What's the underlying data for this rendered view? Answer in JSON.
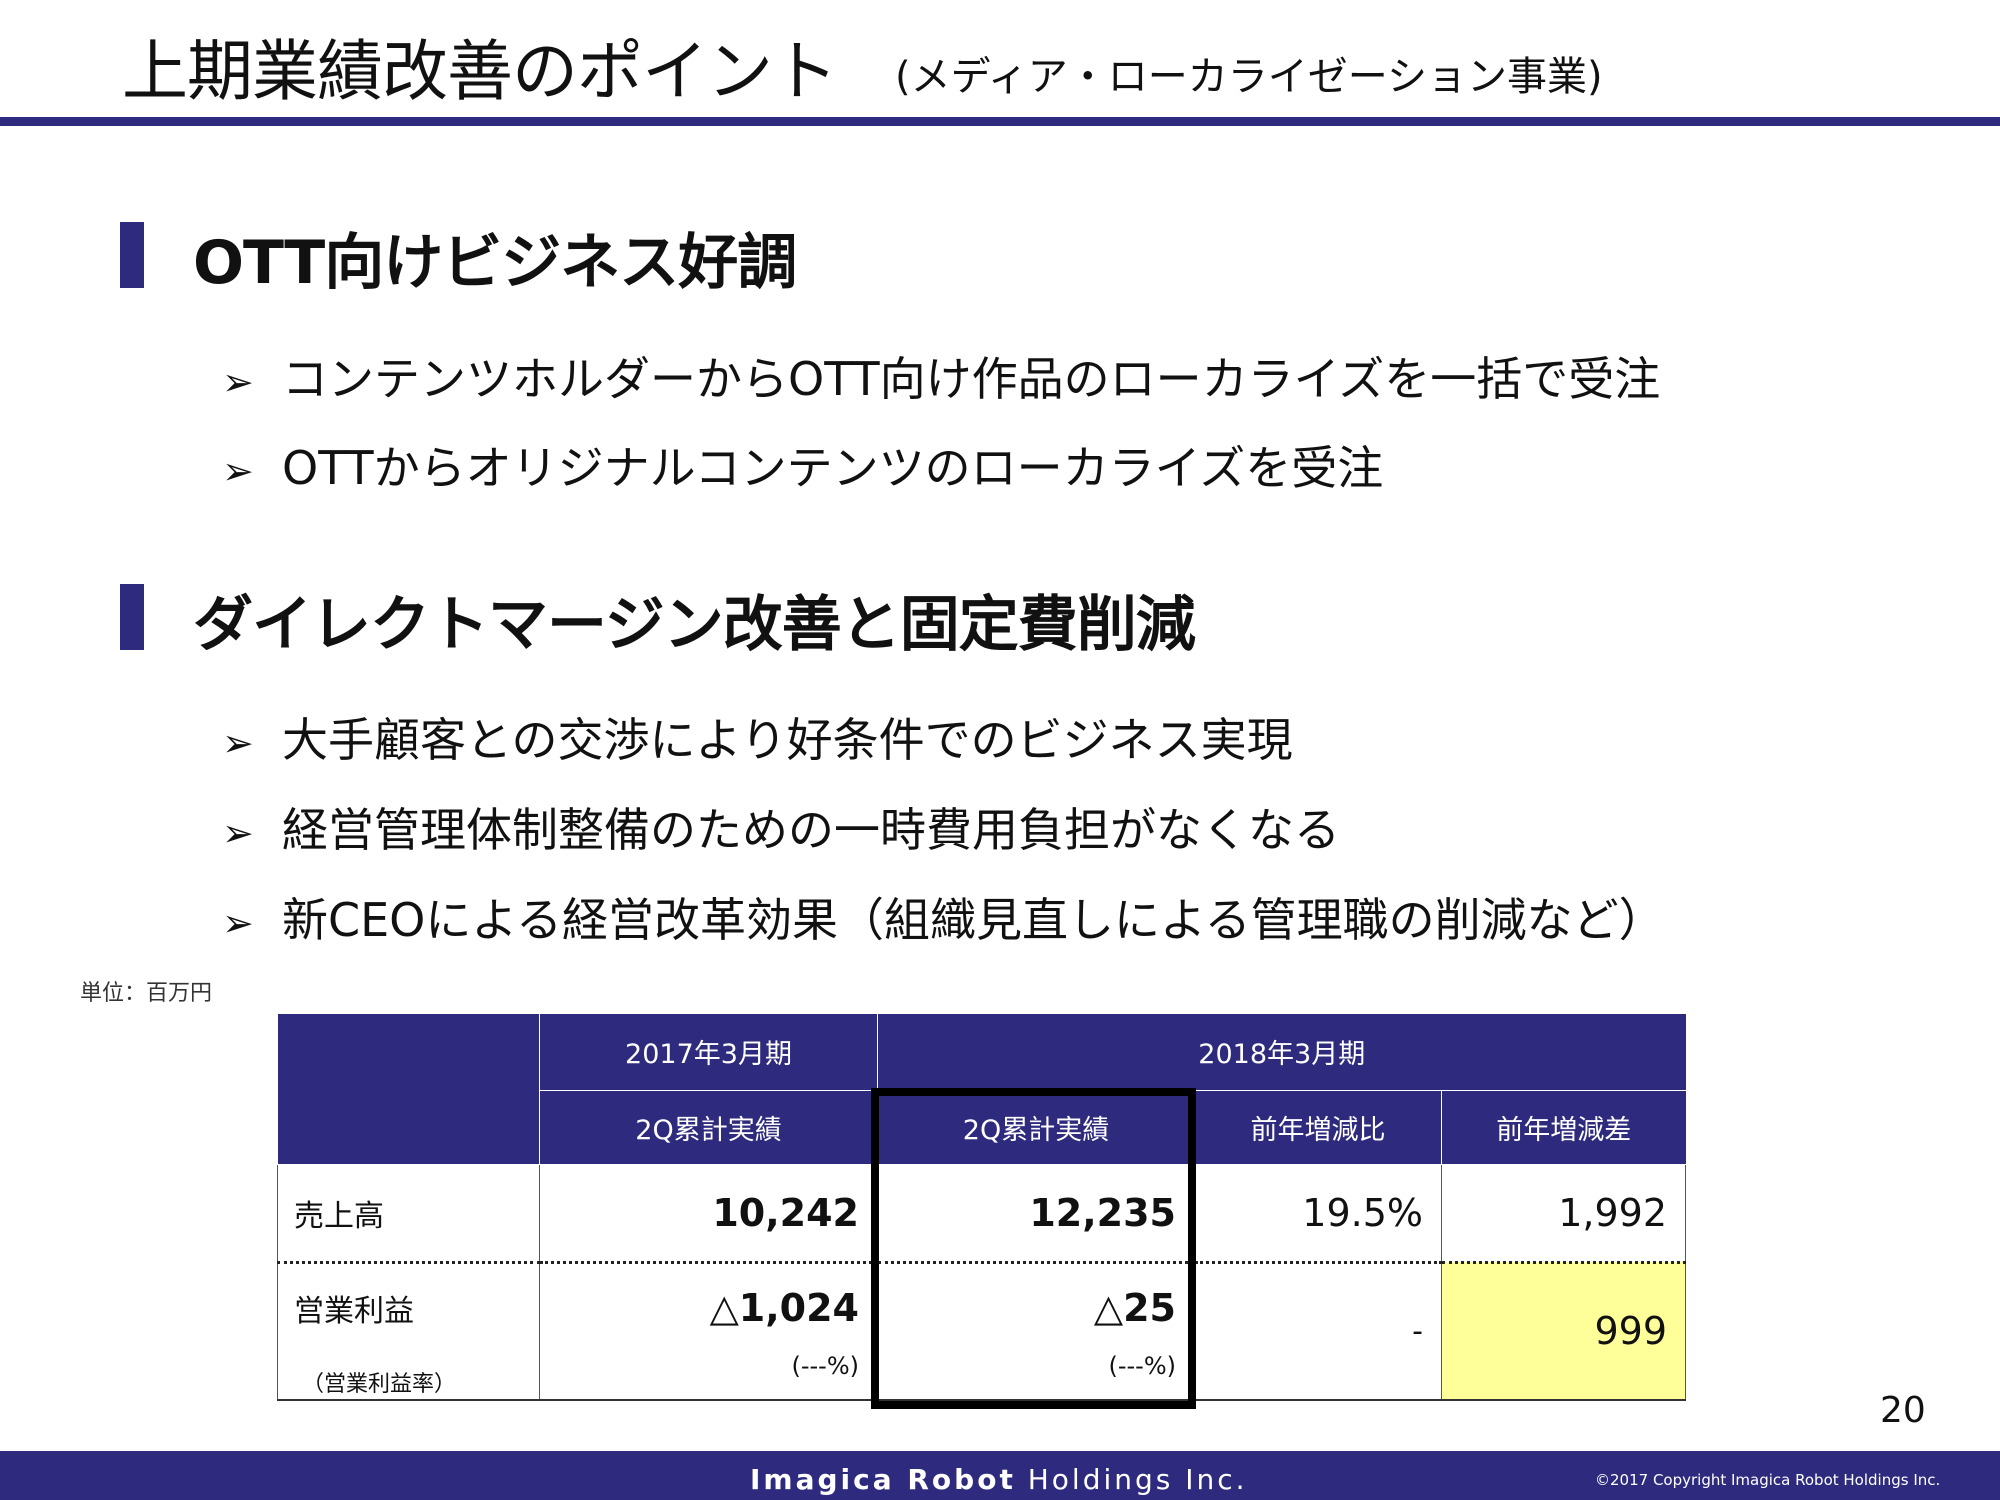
{
  "title": {
    "main": "上期業績改善のポイント",
    "sub": "(メディア・ローカライゼーション事業)"
  },
  "sections": [
    {
      "heading": "OTT向けビジネス好調",
      "bullets": [
        "コンテンツホルダーからOTT向け作品のローカライズを一括で受注",
        "OTTからオリジナルコンテンツのローカライズを受注"
      ]
    },
    {
      "heading": "ダイレクトマージン改善と固定費削減",
      "bullets": [
        "大手顧客との交渉により好条件でのビジネス実現",
        "経営管理体制整備のための一時費用負担がなくなる",
        "新CEOによる経営改革効果（組織見直しによる管理職の削減など）"
      ]
    }
  ],
  "bullet_mark": "➢",
  "unit_note": "単位：百万円",
  "table": {
    "header_periods": [
      "2017年3月期",
      "2018年3月期"
    ],
    "header_cols": [
      "2Q累計実績",
      "2Q累計実績",
      "前年増減比",
      "前年増減差"
    ],
    "rows": [
      {
        "label": "売上高",
        "values": [
          "10,242",
          "12,235",
          "19.5%",
          "1,992"
        ]
      },
      {
        "label": "営業利益",
        "sublabel": "（営業利益率）",
        "values": [
          "△1,024",
          "△25",
          "-",
          "999"
        ],
        "subvalues": [
          "(---%)",
          "(---%)"
        ]
      }
    ]
  },
  "page_number": "20",
  "footer": {
    "brand_bold": "Imagica Robot",
    "brand_regular": " Holdings Inc.",
    "copyright": "©2017  Copyright Imagica Robot Holdings Inc."
  },
  "colors": {
    "accent": "#2e2a7e",
    "highlight": "#ffff99"
  }
}
